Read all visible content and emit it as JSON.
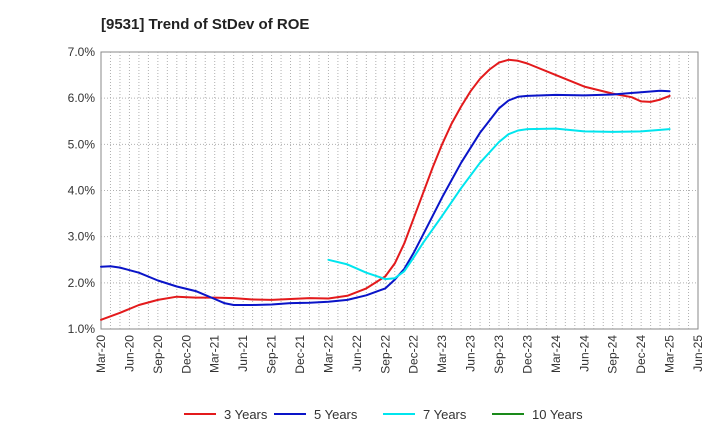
{
  "chart_data": {
    "type": "line",
    "title": "[9531]  Trend of StDev of ROE",
    "xlabel": "",
    "ylabel": "",
    "x_ticks": [
      "Mar-20",
      "Jun-20",
      "Sep-20",
      "Dec-20",
      "Mar-21",
      "Jun-21",
      "Sep-21",
      "Dec-21",
      "Mar-22",
      "Jun-22",
      "Sep-22",
      "Dec-22",
      "Mar-23",
      "Jun-23",
      "Sep-23",
      "Dec-23",
      "Mar-24",
      "Jun-24",
      "Sep-24",
      "Dec-24",
      "Mar-25",
      "Jun-25"
    ],
    "y_ticks": [
      "1.0%",
      "2.0%",
      "3.0%",
      "4.0%",
      "5.0%",
      "6.0%",
      "7.0%"
    ],
    "ylim": [
      1.0,
      7.0
    ],
    "grid": true,
    "legend_position": "bottom",
    "series": [
      {
        "name": "3 Years",
        "color": "#e31a1c",
        "values": [
          [
            "Mar-20",
            1.2
          ],
          [
            "May-20",
            1.35
          ],
          [
            "Jul-20",
            1.52
          ],
          [
            "Sep-20",
            1.63
          ],
          [
            "Nov-20",
            1.7
          ],
          [
            "Jan-21",
            1.68
          ],
          [
            "Mar-21",
            1.68
          ],
          [
            "May-21",
            1.67
          ],
          [
            "Jul-21",
            1.64
          ],
          [
            "Sep-21",
            1.63
          ],
          [
            "Nov-21",
            1.65
          ],
          [
            "Jan-22",
            1.67
          ],
          [
            "Mar-22",
            1.66
          ],
          [
            "May-22",
            1.72
          ],
          [
            "Jul-22",
            1.88
          ],
          [
            "Sep-22",
            2.14
          ],
          [
            "Oct-22",
            2.42
          ],
          [
            "Nov-22",
            2.85
          ],
          [
            "Dec-22",
            3.4
          ],
          [
            "Jan-23",
            3.95
          ],
          [
            "Feb-23",
            4.5
          ],
          [
            "Mar-23",
            5.0
          ],
          [
            "Apr-23",
            5.45
          ],
          [
            "May-23",
            5.82
          ],
          [
            "Jun-23",
            6.15
          ],
          [
            "Jul-23",
            6.42
          ],
          [
            "Aug-23",
            6.62
          ],
          [
            "Sep-23",
            6.77
          ],
          [
            "Oct-23",
            6.83
          ],
          [
            "Nov-23",
            6.81
          ],
          [
            "Dec-23",
            6.75
          ],
          [
            "Mar-24",
            6.5
          ],
          [
            "Jun-24",
            6.25
          ],
          [
            "Sep-24",
            6.1
          ],
          [
            "Nov-24",
            6.02
          ],
          [
            "Dec-24",
            5.93
          ],
          [
            "Jan-25",
            5.92
          ],
          [
            "Feb-25",
            5.97
          ],
          [
            "Mar-25",
            6.05
          ]
        ]
      },
      {
        "name": "5 Years",
        "color": "#0a14c8",
        "values": [
          [
            "Mar-20",
            2.35
          ],
          [
            "Apr-20",
            2.36
          ],
          [
            "May-20",
            2.33
          ],
          [
            "Jul-20",
            2.22
          ],
          [
            "Sep-20",
            2.05
          ],
          [
            "Nov-20",
            1.92
          ],
          [
            "Jan-21",
            1.82
          ],
          [
            "Mar-21",
            1.65
          ],
          [
            "Apr-21",
            1.56
          ],
          [
            "May-21",
            1.52
          ],
          [
            "Jul-21",
            1.52
          ],
          [
            "Sep-21",
            1.53
          ],
          [
            "Nov-21",
            1.56
          ],
          [
            "Jan-22",
            1.57
          ],
          [
            "Mar-22",
            1.59
          ],
          [
            "May-22",
            1.63
          ],
          [
            "Jul-22",
            1.73
          ],
          [
            "Sep-22",
            1.88
          ],
          [
            "Oct-22",
            2.07
          ],
          [
            "Nov-22",
            2.3
          ],
          [
            "Dec-22",
            2.65
          ],
          [
            "Jan-23",
            3.05
          ],
          [
            "Mar-23",
            3.85
          ],
          [
            "May-23",
            4.6
          ],
          [
            "Jul-23",
            5.25
          ],
          [
            "Sep-23",
            5.78
          ],
          [
            "Oct-23",
            5.95
          ],
          [
            "Nov-23",
            6.03
          ],
          [
            "Dec-23",
            6.05
          ],
          [
            "Mar-24",
            6.07
          ],
          [
            "Jun-24",
            6.06
          ],
          [
            "Sep-24",
            6.08
          ],
          [
            "Dec-24",
            6.13
          ],
          [
            "Feb-25",
            6.16
          ],
          [
            "Mar-25",
            6.15
          ]
        ]
      },
      {
        "name": "7 Years",
        "color": "#00e5ee",
        "values": [
          [
            "Mar-22",
            2.5
          ],
          [
            "May-22",
            2.4
          ],
          [
            "Jul-22",
            2.22
          ],
          [
            "Sep-22",
            2.08
          ],
          [
            "Oct-22",
            2.1
          ],
          [
            "Nov-22",
            2.25
          ],
          [
            "Dec-22",
            2.55
          ],
          [
            "Jan-23",
            2.87
          ],
          [
            "Mar-23",
            3.45
          ],
          [
            "May-23",
            4.05
          ],
          [
            "Jul-23",
            4.6
          ],
          [
            "Sep-23",
            5.05
          ],
          [
            "Oct-23",
            5.22
          ],
          [
            "Nov-23",
            5.3
          ],
          [
            "Dec-23",
            5.33
          ],
          [
            "Mar-24",
            5.34
          ],
          [
            "Jun-24",
            5.28
          ],
          [
            "Sep-24",
            5.27
          ],
          [
            "Dec-24",
            5.28
          ],
          [
            "Mar-25",
            5.33
          ]
        ]
      },
      {
        "name": "10 Years",
        "color": "#1a8a1a",
        "values": []
      }
    ]
  }
}
